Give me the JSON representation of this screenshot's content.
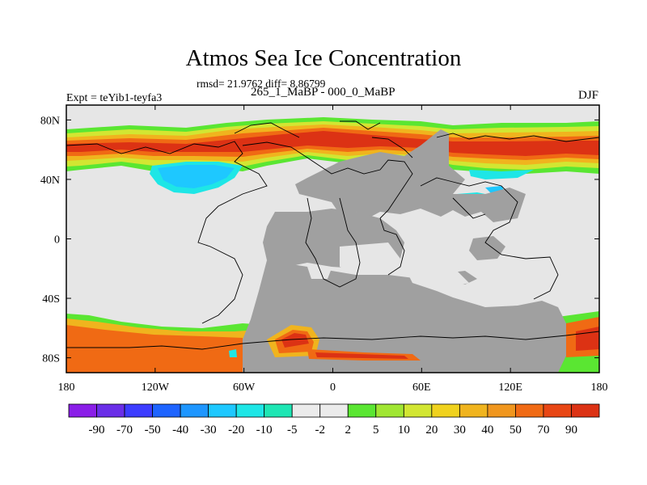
{
  "title": "Atmos Sea Ice Concentration",
  "stats": "rmsd= 21.9762 diff= 8.86799",
  "experiment": "Expt = teYib1-teyfa3",
  "period": "265_1_MaBP - 000_0_MaBP",
  "season": "DJF",
  "lat_ticks": [
    "80N",
    "40N",
    "0",
    "40S",
    "80S"
  ],
  "lon_ticks": [
    "180",
    "120W",
    "60W",
    "0",
    "60E",
    "120E",
    "180"
  ],
  "colorbar": {
    "labels": [
      "-90",
      "-70",
      "-50",
      "-40",
      "-30",
      "-20",
      "-10",
      "-5",
      "-2",
      "2",
      "5",
      "10",
      "20",
      "30",
      "40",
      "50",
      "70",
      "90"
    ],
    "colors": [
      "#8a1ee8",
      "#6a2ee8",
      "#3c3cff",
      "#1e64ff",
      "#1e96ff",
      "#1ec8ff",
      "#1ee6e6",
      "#1ee6b4",
      "#ebebeb",
      "#ebebeb",
      "#5ae632",
      "#a0e632",
      "#d2e632",
      "#f0d21e",
      "#f0b41e",
      "#f0961e",
      "#f06a14",
      "#e84614",
      "#dc3214"
    ]
  },
  "colors": {
    "land": "#a0a0a0",
    "ocean_zero": "#e6e6e6",
    "red": "#dc3214",
    "orange": "#f06a14",
    "amber": "#f0b41e",
    "yellow": "#d2e632",
    "green": "#5ae632",
    "cyan": "#1ee6e6",
    "blue": "#1ec8ff"
  }
}
